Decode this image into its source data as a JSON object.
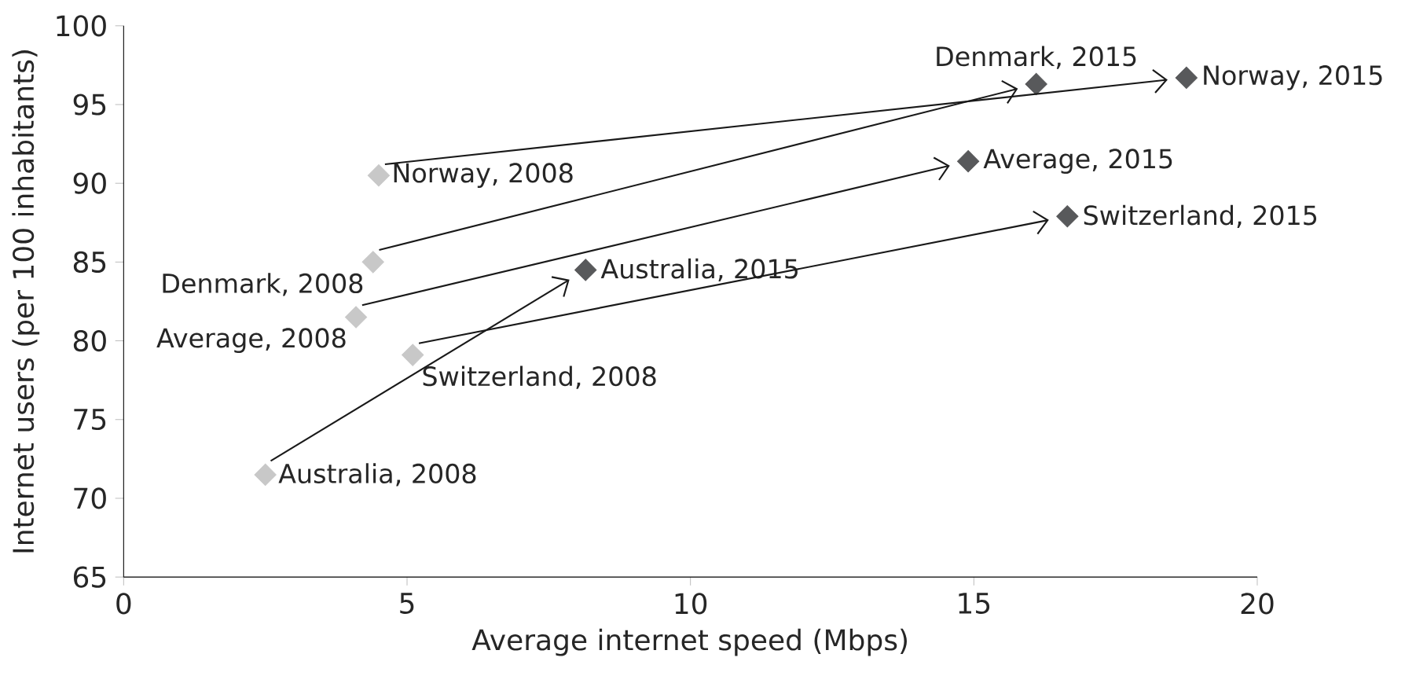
{
  "chart_data": {
    "type": "scatter",
    "xlabel": "Average internet speed (Mbps)",
    "ylabel": "Internet users (per 100 inhabitants)",
    "series": [
      {
        "color": "#c8c8c8",
        "x": [
          4.5,
          4.4,
          4.1,
          5.1,
          2.5
        ],
        "values": [
          90.5,
          85.0,
          81.5,
          79.1,
          71.5
        ]
      },
      {
        "color": "#58595b",
        "x": [
          18.75,
          16.1,
          14.9,
          16.65,
          8.15
        ],
        "values": [
          96.7,
          96.3,
          91.4,
          87.9,
          84.5
        ]
      }
    ],
    "marker": "diamond",
    "xlim": [
      0,
      20
    ],
    "xticks": [
      0,
      5,
      10,
      15,
      20
    ],
    "ylim": [
      65,
      100
    ],
    "yticks": [
      65,
      70,
      75,
      80,
      85,
      90,
      95,
      100
    ],
    "annotations": [
      {
        "text": "Norway, 2008",
        "x": 4.5,
        "y": 90.5
      },
      {
        "text": "Denmark, 2008",
        "x": 4.4,
        "y": 85.0
      },
      {
        "text": "Average, 2008",
        "x": 4.1,
        "y": 81.5
      },
      {
        "text": "Switzerland, 2008",
        "x": 5.1,
        "y": 79.1
      },
      {
        "text": "Australia, 2008",
        "x": 2.5,
        "y": 71.5
      },
      {
        "text": "Norway, 2015",
        "x": 18.75,
        "y": 96.7
      },
      {
        "text": "Denmark, 2015",
        "x": 16.1,
        "y": 96.3
      },
      {
        "text": "Average, 2015",
        "x": 14.9,
        "y": 91.4
      },
      {
        "text": "Switzerland, 2015",
        "x": 16.65,
        "y": 87.9
      },
      {
        "text": "Australia, 2015",
        "x": 8.15,
        "y": 84.5
      }
    ]
  }
}
